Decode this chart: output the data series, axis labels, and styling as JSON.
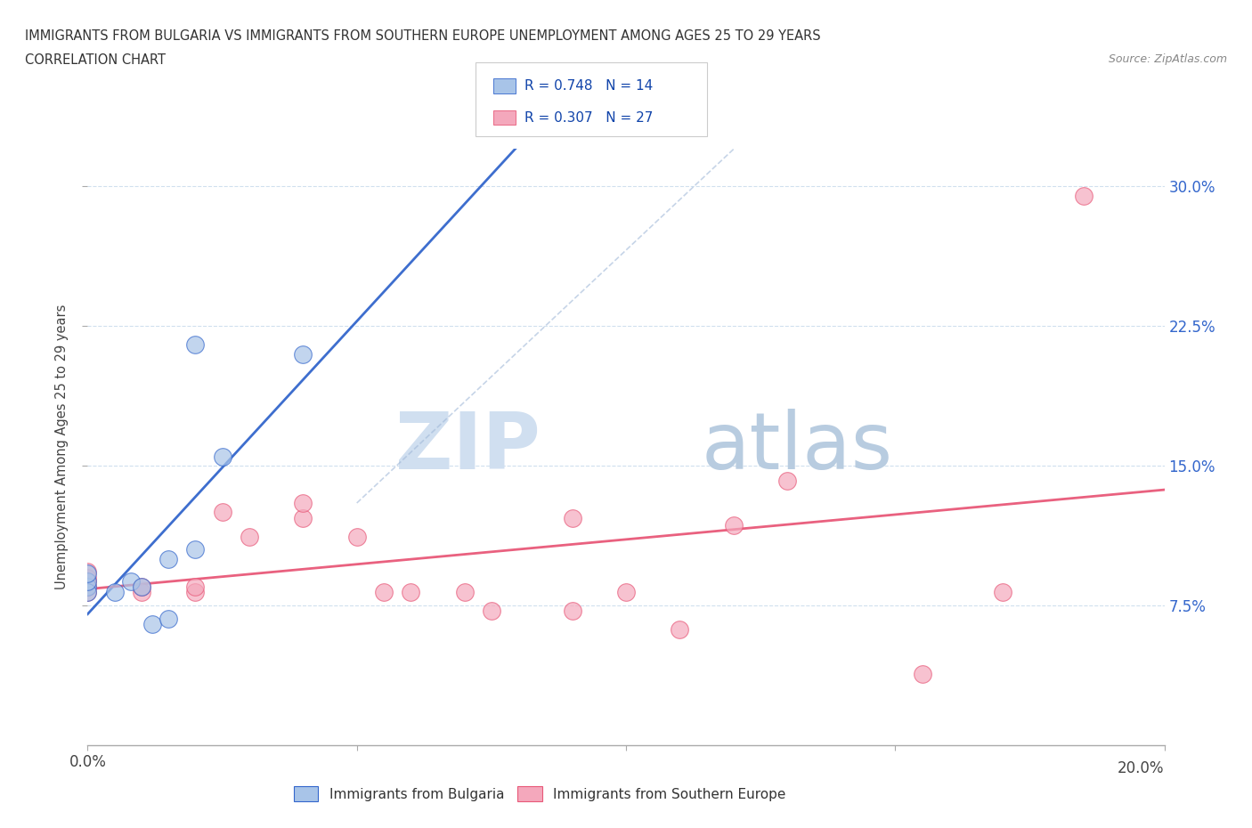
{
  "title_line1": "IMMIGRANTS FROM BULGARIA VS IMMIGRANTS FROM SOUTHERN EUROPE UNEMPLOYMENT AMONG AGES 25 TO 29 YEARS",
  "title_line2": "CORRELATION CHART",
  "source_text": "Source: ZipAtlas.com",
  "ylabel": "Unemployment Among Ages 25 to 29 years",
  "xlim": [
    0.0,
    0.2
  ],
  "ylim": [
    0.0,
    0.32
  ],
  "xticks": [
    0.0,
    0.05,
    0.1,
    0.15,
    0.2
  ],
  "yticks": [
    0.075,
    0.15,
    0.225,
    0.3
  ],
  "R_bulgaria": 0.748,
  "N_bulgaria": 14,
  "R_southern": 0.307,
  "N_southern": 27,
  "bulgaria_color": "#a8c4e8",
  "southern_color": "#f4a8bc",
  "trendline_bulgaria_color": "#3366cc",
  "trendline_southern_color": "#e85878",
  "diagonal_color": "#a0b8d8",
  "bulgaria_scatter_x": [
    0.0,
    0.0,
    0.0,
    0.0,
    0.005,
    0.008,
    0.01,
    0.012,
    0.015,
    0.015,
    0.02,
    0.02,
    0.025,
    0.04
  ],
  "bulgaria_scatter_y": [
    0.085,
    0.082,
    0.088,
    0.092,
    0.082,
    0.088,
    0.085,
    0.065,
    0.068,
    0.1,
    0.105,
    0.215,
    0.155,
    0.21
  ],
  "southern_scatter_x": [
    0.0,
    0.0,
    0.0,
    0.0,
    0.0,
    0.01,
    0.01,
    0.02,
    0.02,
    0.025,
    0.03,
    0.04,
    0.04,
    0.05,
    0.055,
    0.06,
    0.07,
    0.075,
    0.09,
    0.09,
    0.1,
    0.11,
    0.12,
    0.13,
    0.155,
    0.17,
    0.185
  ],
  "southern_scatter_y": [
    0.082,
    0.085,
    0.088,
    0.09,
    0.093,
    0.082,
    0.085,
    0.082,
    0.085,
    0.125,
    0.112,
    0.122,
    0.13,
    0.112,
    0.082,
    0.082,
    0.082,
    0.072,
    0.072,
    0.122,
    0.082,
    0.062,
    0.118,
    0.142,
    0.038,
    0.082,
    0.295
  ],
  "watermark_zip": "ZIP",
  "watermark_atlas": "atlas",
  "bg_color": "#ffffff",
  "grid_color": "#d0e0ee"
}
